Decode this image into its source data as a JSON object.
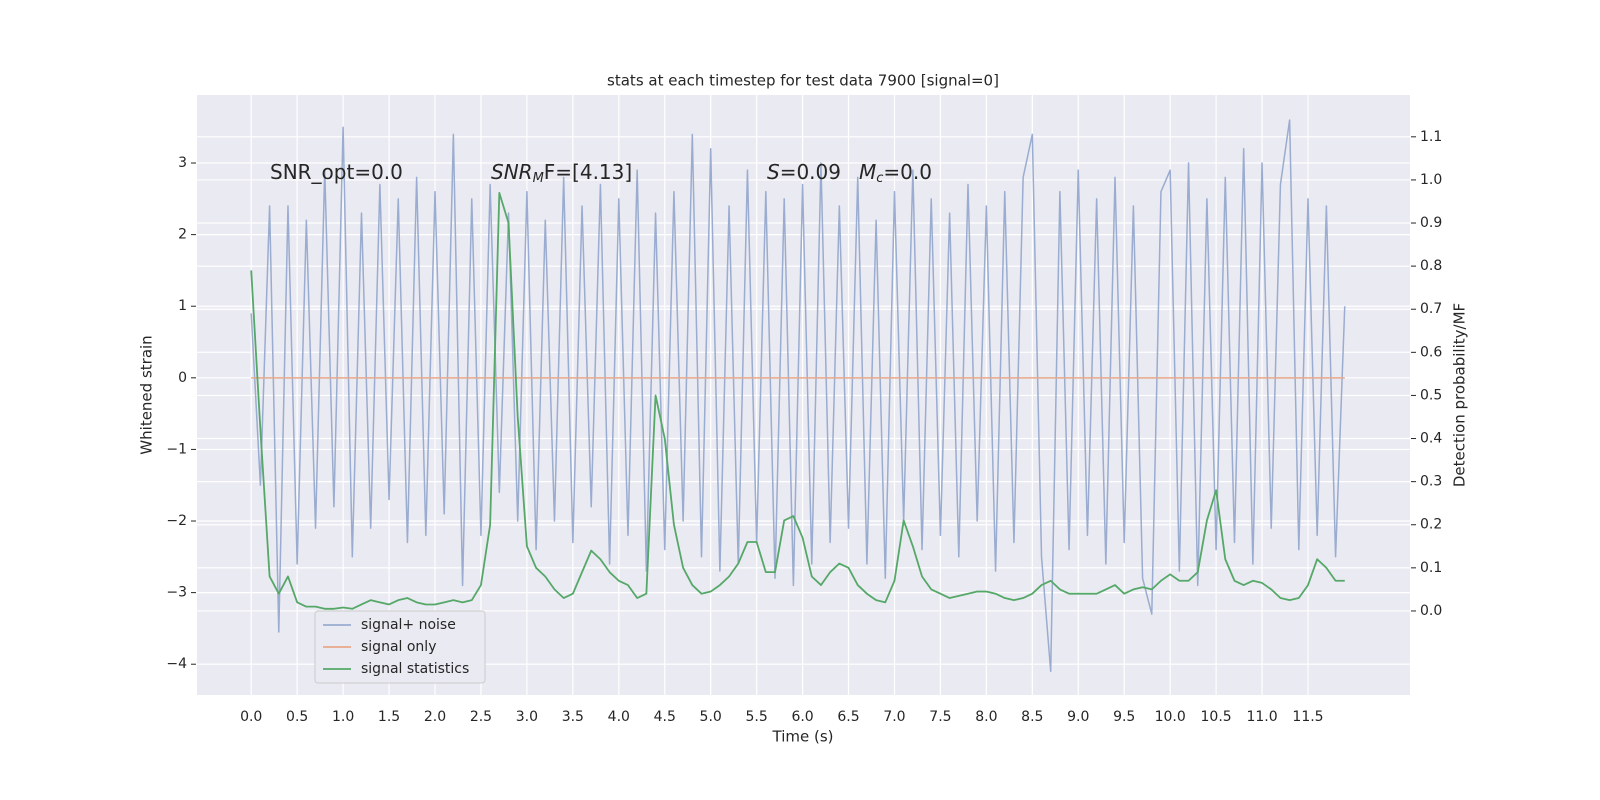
{
  "chart_data": {
    "type": "line",
    "title": "stats at each timestep for test data 7900 [signal=0]",
    "xlabel": "Time (s)",
    "ylabel": "Whitened strain",
    "y2label": "Detection probability/MF",
    "grid": true,
    "legend": "lower left",
    "xlim": [
      -0.59,
      12.61
    ],
    "ylim": [
      -4.43,
      3.95
    ],
    "y2lim": [
      -0.195,
      1.197
    ],
    "xticks": [
      {
        "value": 0,
        "label": "0.0"
      },
      0.5,
      {
        "value": 1,
        "label": "1.0"
      },
      1.5,
      {
        "value": 2,
        "label": "2.0"
      },
      2.5,
      {
        "value": 3,
        "label": "3.0"
      },
      3.5,
      {
        "value": 4,
        "label": "4.0"
      },
      4.5,
      {
        "value": 5,
        "label": "5.0"
      },
      5.5,
      {
        "value": 6,
        "label": "6.0"
      },
      6.5,
      {
        "value": 7,
        "label": "7.0"
      },
      7.5,
      {
        "value": 8,
        "label": "8.0"
      },
      8.5,
      {
        "value": 9,
        "label": "9.0"
      },
      9.5,
      {
        "value": 10,
        "label": "10.0"
      },
      10.5,
      {
        "value": 11,
        "label": "11.0"
      },
      11.5
    ],
    "yticks": [
      {
        "value": -4,
        "label": "−4"
      },
      {
        "value": -3,
        "label": "−3"
      },
      {
        "value": -2,
        "label": "−2"
      },
      {
        "value": -1,
        "label": "−1"
      },
      0,
      1,
      2,
      3
    ],
    "y2ticks": [
      {
        "value": 0,
        "label": "0.0"
      },
      0.1,
      0.2,
      0.3,
      0.4,
      0.5,
      0.6,
      0.7,
      0.8,
      0.9,
      {
        "value": 1,
        "label": "1.0"
      },
      1.1
    ],
    "annotations": [
      {
        "text": "SNR_opt=0.0"
      },
      {
        "italic": "SNR",
        "sub": "M",
        "text": "F=[4.13]"
      },
      {
        "italic": "S",
        "text": "=0.09"
      },
      {
        "italic": "M",
        "sub": "c",
        "text": "=0.0"
      }
    ],
    "x": [
      0.0,
      0.1,
      0.2,
      0.3,
      0.4,
      0.5,
      0.6,
      0.7,
      0.8,
      0.9,
      1.0,
      1.1,
      1.2,
      1.3,
      1.4,
      1.5,
      1.6,
      1.7,
      1.8,
      1.9,
      2.0,
      2.1,
      2.2,
      2.3,
      2.4,
      2.5,
      2.6,
      2.7,
      2.8,
      2.9,
      3.0,
      3.1,
      3.2,
      3.3,
      3.4,
      3.5,
      3.6,
      3.7,
      3.8,
      3.9,
      4.0,
      4.1,
      4.2,
      4.3,
      4.4,
      4.5,
      4.6,
      4.7,
      4.8,
      4.9,
      5.0,
      5.1,
      5.2,
      5.3,
      5.4,
      5.5,
      5.6,
      5.7,
      5.8,
      5.9,
      6.0,
      6.1,
      6.2,
      6.3,
      6.4,
      6.5,
      6.6,
      6.7,
      6.8,
      6.9,
      7.0,
      7.1,
      7.2,
      7.3,
      7.4,
      7.5,
      7.6,
      7.7,
      7.8,
      7.9,
      8.0,
      8.1,
      8.2,
      8.3,
      8.4,
      8.5,
      8.6,
      8.7,
      8.8,
      8.9,
      9.0,
      9.1,
      9.2,
      9.3,
      9.4,
      9.5,
      9.6,
      9.7,
      9.8,
      9.9,
      10.0,
      10.1,
      10.2,
      10.3,
      10.4,
      10.5,
      10.6,
      10.7,
      10.8,
      10.9,
      11.0,
      11.1,
      11.2,
      11.3,
      11.4,
      11.5,
      11.6,
      11.7,
      11.8,
      11.9
    ],
    "series": [
      {
        "name": "signal+ noise",
        "color": "#9aaccf",
        "axis": "y",
        "values": [
          0.9,
          -1.5,
          2.4,
          -3.55,
          2.4,
          -2.6,
          2.2,
          -2.1,
          2.9,
          -1.8,
          3.5,
          -2.5,
          2.3,
          -2.1,
          2.7,
          -1.7,
          2.5,
          -2.3,
          2.8,
          -2.2,
          2.6,
          -1.9,
          3.4,
          -2.9,
          2.5,
          -2.2,
          2.7,
          -1.6,
          2.3,
          -2.0,
          2.6,
          -2.4,
          2.2,
          -2.0,
          2.8,
          -2.3,
          2.4,
          -1.8,
          2.7,
          -2.6,
          2.5,
          -2.2,
          2.9,
          -2.7,
          2.3,
          -2.4,
          2.6,
          -2.0,
          3.4,
          -2.5,
          3.2,
          -2.7,
          2.4,
          -2.6,
          2.9,
          -2.3,
          2.6,
          -2.8,
          2.5,
          -2.9,
          2.7,
          -2.6,
          3.0,
          -2.3,
          2.4,
          -2.1,
          2.8,
          -2.6,
          2.2,
          -2.8,
          2.6,
          -2.0,
          2.9,
          -2.4,
          2.5,
          -2.2,
          2.3,
          -2.5,
          2.7,
          -2.0,
          2.4,
          -2.7,
          2.6,
          -2.3,
          2.8,
          3.4,
          -2.5,
          -4.1,
          2.6,
          -2.4,
          2.9,
          -2.2,
          2.5,
          -2.6,
          2.8,
          -2.3,
          2.4,
          -2.8,
          -3.3,
          2.6,
          2.9,
          -2.7,
          3.0,
          -2.9,
          2.5,
          -2.4,
          2.8,
          -2.3,
          3.2,
          -2.6,
          3.0,
          -2.1,
          2.7,
          3.6,
          -2.4,
          2.5,
          -2.2,
          2.4,
          -2.5,
          1.0
        ]
      },
      {
        "name": "signal only",
        "color": "#e8a888",
        "axis": "y",
        "values": [
          0,
          0,
          0,
          0,
          0,
          0,
          0,
          0,
          0,
          0,
          0,
          0,
          0,
          0,
          0,
          0,
          0,
          0,
          0,
          0,
          0,
          0,
          0,
          0,
          0,
          0,
          0,
          0,
          0,
          0,
          0,
          0,
          0,
          0,
          0,
          0,
          0,
          0,
          0,
          0,
          0,
          0,
          0,
          0,
          0,
          0,
          0,
          0,
          0,
          0,
          0,
          0,
          0,
          0,
          0,
          0,
          0,
          0,
          0,
          0,
          0,
          0,
          0,
          0,
          0,
          0,
          0,
          0,
          0,
          0,
          0,
          0,
          0,
          0,
          0,
          0,
          0,
          0,
          0,
          0,
          0,
          0,
          0,
          0,
          0,
          0,
          0,
          0,
          0,
          0,
          0,
          0,
          0,
          0,
          0,
          0,
          0,
          0,
          0,
          0,
          0,
          0,
          0,
          0,
          0,
          0,
          0,
          0,
          0,
          0,
          0,
          0,
          0,
          0,
          0,
          0,
          0,
          0,
          0,
          0
        ]
      },
      {
        "name": "signal statistics",
        "color": "#55a868",
        "axis": "y2",
        "values": [
          0.79,
          0.42,
          0.08,
          0.04,
          0.08,
          0.02,
          0.01,
          0.01,
          0.005,
          0.005,
          0.008,
          0.005,
          0.015,
          0.025,
          0.02,
          0.015,
          0.025,
          0.03,
          0.02,
          0.015,
          0.015,
          0.02,
          0.025,
          0.02,
          0.025,
          0.06,
          0.2,
          0.97,
          0.9,
          0.45,
          0.15,
          0.1,
          0.08,
          0.05,
          0.03,
          0.04,
          0.09,
          0.14,
          0.12,
          0.09,
          0.07,
          0.06,
          0.03,
          0.04,
          0.5,
          0.4,
          0.2,
          0.1,
          0.06,
          0.04,
          0.045,
          0.06,
          0.08,
          0.11,
          0.16,
          0.16,
          0.09,
          0.09,
          0.21,
          0.22,
          0.17,
          0.08,
          0.06,
          0.09,
          0.11,
          0.1,
          0.06,
          0.04,
          0.025,
          0.02,
          0.07,
          0.21,
          0.15,
          0.08,
          0.05,
          0.04,
          0.03,
          0.035,
          0.04,
          0.045,
          0.045,
          0.04,
          0.03,
          0.025,
          0.03,
          0.04,
          0.06,
          0.07,
          0.05,
          0.04,
          0.04,
          0.04,
          0.04,
          0.05,
          0.06,
          0.04,
          0.05,
          0.055,
          0.05,
          0.07,
          0.085,
          0.07,
          0.07,
          0.09,
          0.21,
          0.28,
          0.12,
          0.07,
          0.06,
          0.07,
          0.065,
          0.05,
          0.03,
          0.025,
          0.03,
          0.06,
          0.12,
          0.1,
          0.07,
          0.07
        ]
      }
    ]
  }
}
